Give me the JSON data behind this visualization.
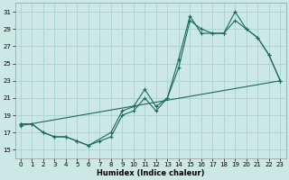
{
  "xlabel": "Humidex (Indice chaleur)",
  "bg_color": "#cce8e4",
  "grid_color": "#b0d4d0",
  "line_color": "#1a6b5a",
  "xlim": [
    -0.5,
    23.5
  ],
  "ylim": [
    14.0,
    32.0
  ],
  "xticks": [
    0,
    1,
    2,
    3,
    4,
    5,
    6,
    7,
    8,
    9,
    10,
    11,
    12,
    13,
    14,
    15,
    16,
    17,
    18,
    19,
    20,
    21,
    22,
    23
  ],
  "yticks": [
    15,
    17,
    19,
    21,
    23,
    25,
    27,
    29,
    31
  ],
  "line_min_x": [
    0,
    1,
    2,
    3,
    4,
    5,
    6,
    7,
    8,
    9,
    10,
    11,
    12,
    13,
    14,
    15,
    16,
    17,
    18,
    19,
    20,
    21,
    22,
    23
  ],
  "line_min_y": [
    18,
    18,
    17,
    16.5,
    16.5,
    16,
    15.5,
    16,
    16.5,
    19,
    19.5,
    21,
    19.5,
    21,
    24.5,
    30,
    29,
    28.5,
    28.5,
    30,
    29,
    28,
    26,
    23
  ],
  "line_max_x": [
    0,
    1,
    2,
    3,
    4,
    5,
    6,
    8,
    9,
    10,
    11,
    12,
    13,
    14,
    15,
    16,
    17,
    18,
    19,
    20,
    21,
    22,
    23
  ],
  "line_max_y": [
    18,
    18,
    17,
    16.5,
    16.5,
    16,
    15.5,
    17,
    19.5,
    20,
    22,
    20,
    21,
    25.5,
    30.5,
    28.5,
    28.5,
    28.5,
    31,
    29,
    28,
    26,
    23
  ],
  "line_trend_x": [
    0,
    23
  ],
  "line_trend_y": [
    17.8,
    23.0
  ]
}
